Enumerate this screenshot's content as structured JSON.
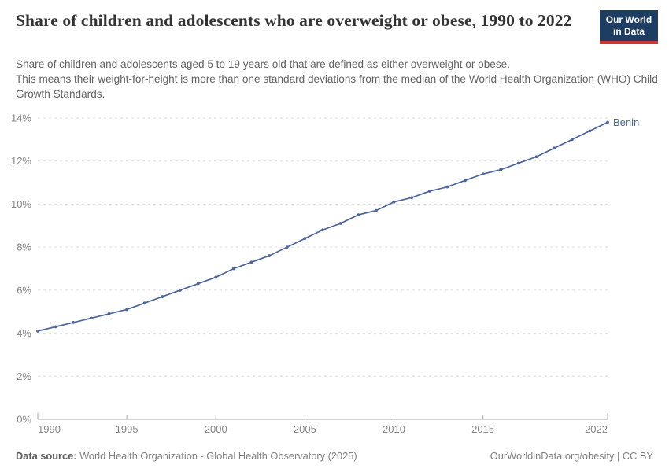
{
  "header": {
    "title": "Share of children and adolescents who are overweight or obese, 1990 to 2022",
    "subtitle_line1": "Share of children and adolescents aged 5 to 19 years old that are defined as either overweight or obese.",
    "subtitle_line2": "This means their weight-for-height is more than one standard deviations from the median of the World Health Organization (WHO) Child Growth Standards.",
    "logo": {
      "line1": "Our World",
      "line2": "in Data",
      "bg_color": "#1d3d63",
      "accent_color": "#cf342e"
    }
  },
  "chart_data": {
    "type": "line",
    "title": "Share of children and adolescents who are overweight or obese, 1990 to 2022",
    "xlabel": "",
    "ylabel": "",
    "xlim": [
      1990,
      2022
    ],
    "ylim": [
      0,
      14
    ],
    "grid": "horizontal-dashed",
    "legend_position": "line-end-label",
    "xticks": [
      1990,
      1995,
      2000,
      2005,
      2010,
      2015,
      2022
    ],
    "yticks": [
      0,
      2,
      4,
      6,
      8,
      10,
      12,
      14
    ],
    "ytick_suffix": "%",
    "x": [
      1990,
      1991,
      1992,
      1993,
      1994,
      1995,
      1996,
      1997,
      1998,
      1999,
      2000,
      2001,
      2002,
      2003,
      2004,
      2005,
      2006,
      2007,
      2008,
      2009,
      2010,
      2011,
      2012,
      2013,
      2014,
      2015,
      2016,
      2017,
      2018,
      2019,
      2020,
      2021,
      2022
    ],
    "series": [
      {
        "name": "Benin",
        "color": "#4c669c",
        "values": [
          4.1,
          4.3,
          4.5,
          4.7,
          4.9,
          5.1,
          5.4,
          5.7,
          6.0,
          6.3,
          6.6,
          7.0,
          7.3,
          7.6,
          8.0,
          8.4,
          8.8,
          9.1,
          9.5,
          9.7,
          10.1,
          10.3,
          10.6,
          10.8,
          11.1,
          11.4,
          11.6,
          11.9,
          12.2,
          12.6,
          13.0,
          13.4,
          13.8
        ]
      }
    ],
    "colors": {
      "gridline": "#dcdcdc",
      "axis": "#a8a8a8",
      "tick_label": "#878787"
    }
  },
  "footer": {
    "datasource_label": "Data source:",
    "datasource_value": " World Health Organization - Global Health Observatory (2025)",
    "credit": "OurWorldinData.org/obesity | CC BY"
  }
}
